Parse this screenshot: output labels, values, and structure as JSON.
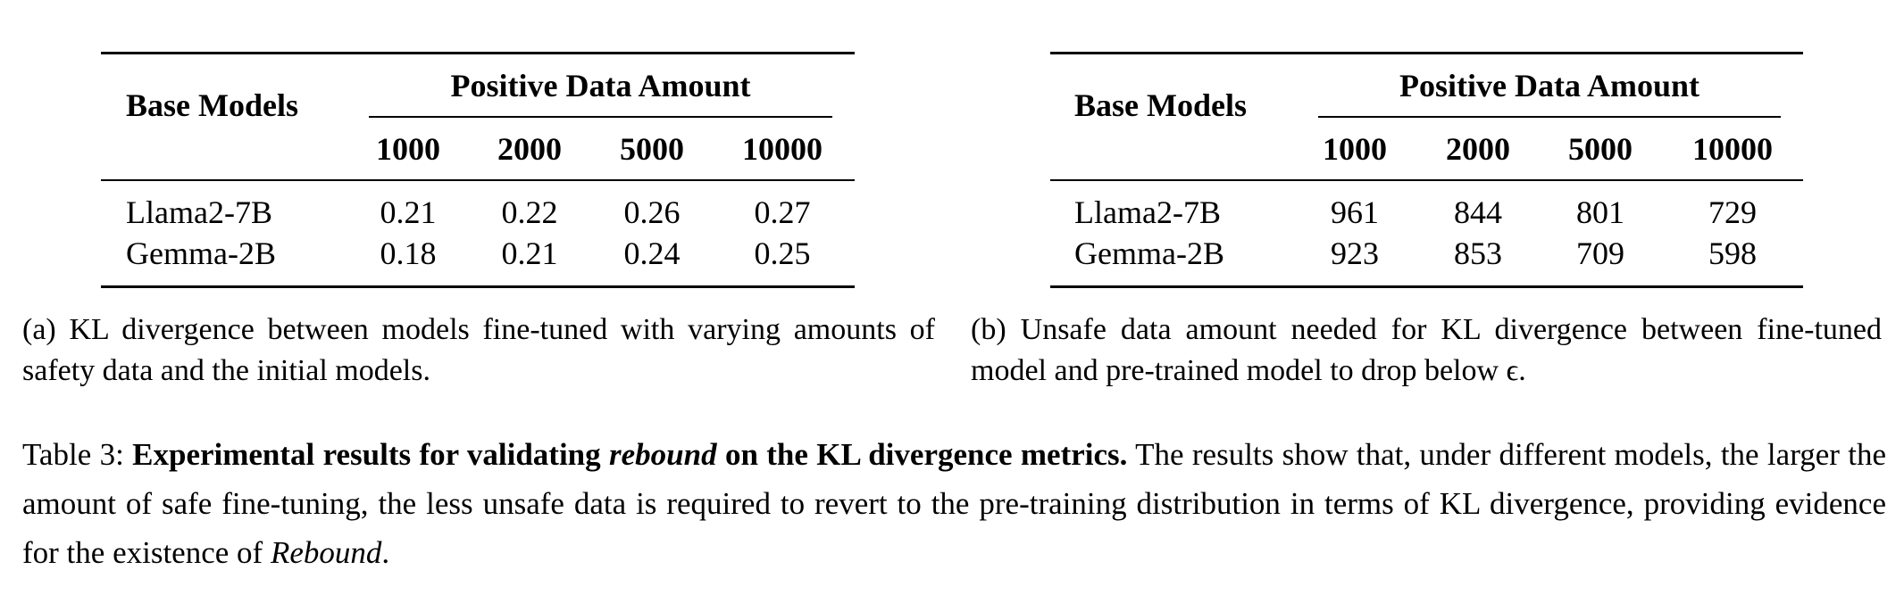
{
  "tables": [
    {
      "header_left": "Base Models",
      "group_header": "Positive Data Amount",
      "columns": [
        "1000",
        "2000",
        "5000",
        "10000"
      ],
      "rows": [
        {
          "model": "Llama2-7B",
          "values": [
            "0.21",
            "0.22",
            "0.26",
            "0.27"
          ]
        },
        {
          "model": "Gemma-2B",
          "values": [
            "0.18",
            "0.21",
            "0.24",
            "0.25"
          ]
        }
      ],
      "subcaption": "(a) KL divergence between models fine-tuned with varying amounts of safety data and the initial models."
    },
    {
      "header_left": "Base Models",
      "group_header": "Positive Data Amount",
      "columns": [
        "1000",
        "2000",
        "5000",
        "10000"
      ],
      "rows": [
        {
          "model": "Llama2-7B",
          "values": [
            "961",
            "844",
            "801",
            "729"
          ]
        },
        {
          "model": "Gemma-2B",
          "values": [
            "923",
            "853",
            "709",
            "598"
          ]
        }
      ],
      "subcaption": "(b) Unsafe data amount needed for KL divergence between fine-tuned model and pre-trained model to drop below ϵ."
    }
  ],
  "caption": {
    "label": "Table 3:",
    "bold_1": "Experimental results for validating",
    "italic_bold": "rebound",
    "bold_2": "on the KL divergence metrics.",
    "text": "The results show that, under different models, the larger the amount of safe fine-tuning, the less unsafe data is required to revert to the pre-training distribution in terms of KL divergence, providing evidence for the existence of",
    "italic_end": "Rebound",
    "end": "."
  }
}
